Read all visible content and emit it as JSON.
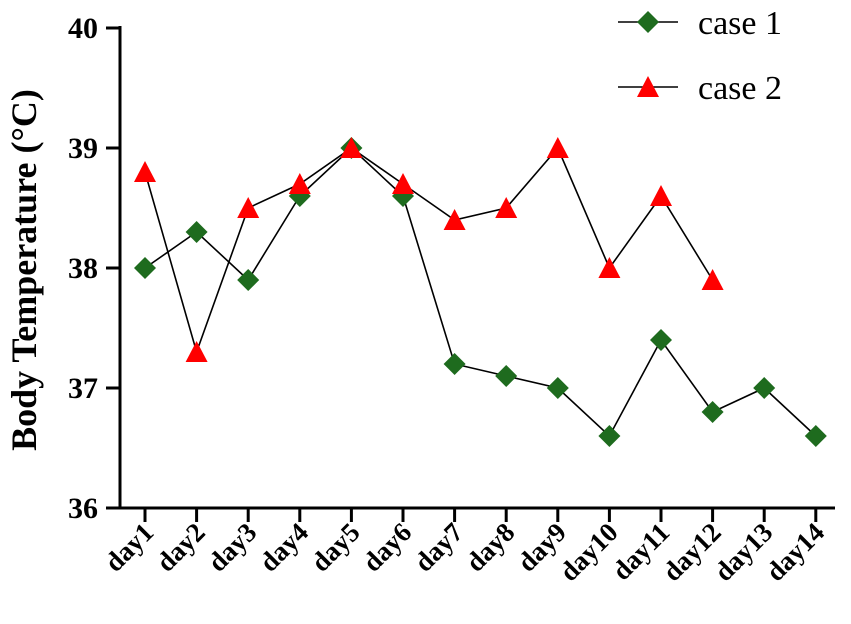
{
  "chart_data": {
    "type": "line",
    "title": "",
    "xlabel": "",
    "ylabel": "Body Temperature (°C)",
    "ylim": [
      36,
      40
    ],
    "yticks": [
      "36",
      "37",
      "38",
      "39",
      "40"
    ],
    "categories": [
      "day1",
      "day2",
      "day3",
      "day4",
      "day5",
      "day6",
      "day7",
      "day8",
      "day9",
      "day10",
      "day11",
      "day12",
      "day13",
      "day14"
    ],
    "series": [
      {
        "name": "case 1",
        "marker": "diamond",
        "color": "#1e6b1e",
        "values": [
          38.0,
          38.3,
          37.9,
          38.6,
          39.0,
          38.6,
          37.2,
          37.1,
          37.0,
          36.6,
          37.4,
          36.8,
          37.0,
          36.6
        ]
      },
      {
        "name": "case 2",
        "marker": "triangle",
        "color": "#ff0000",
        "values": [
          38.8,
          37.3,
          38.5,
          38.7,
          39.0,
          38.7,
          38.4,
          38.5,
          39.0,
          38.0,
          38.6,
          37.9,
          null,
          null
        ]
      }
    ],
    "line_color": "#000000",
    "grid": false,
    "legend_position": "top-right"
  }
}
